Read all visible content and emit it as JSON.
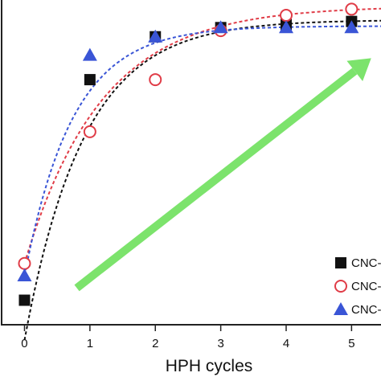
{
  "chart_data": {
    "type": "scatter",
    "xlabel": "HPH cycles",
    "ylabel": "",
    "xlim": [
      -0.35,
      5.45
    ],
    "ylim": [
      0,
      1.06
    ],
    "x_ticks": [
      0,
      1,
      2,
      3,
      4,
      5
    ],
    "grid": false,
    "legend_position": "bottom-right",
    "series": [
      {
        "name": "CNC-",
        "marker": "square",
        "color": "#111111",
        "x": [
          0,
          1,
          2,
          3,
          4,
          5
        ],
        "y": [
          0.08,
          0.8,
          0.94,
          0.97,
          0.98,
          0.99
        ]
      },
      {
        "name": "CNC-",
        "marker": "open-circle",
        "color": "#e03c47",
        "x": [
          0,
          1,
          2,
          3,
          4,
          5
        ],
        "y": [
          0.2,
          0.63,
          0.8,
          0.96,
          1.01,
          1.03
        ]
      },
      {
        "name": "CNC-",
        "marker": "triangle",
        "color": "#3a55d6",
        "x": [
          0,
          1,
          2,
          3,
          4,
          5
        ],
        "y": [
          0.16,
          0.88,
          0.94,
          0.97,
          0.97,
          0.97
        ]
      }
    ],
    "fit_curves": [
      {
        "series": 0,
        "style": "dashed",
        "color": "#111111",
        "plateau": 0.995,
        "rate": 1.1
      },
      {
        "series": 1,
        "style": "dashed",
        "color": "#e03c47",
        "plateau": 1.04,
        "rate": 0.85,
        "y0": 0.2
      },
      {
        "series": 2,
        "style": "dashed",
        "color": "#3a55d6",
        "plateau": 0.975,
        "rate": 1.35,
        "y0": 0.16
      }
    ],
    "annotation_arrow": {
      "color": "#7ce36c",
      "from": [
        0.8,
        0.12
      ],
      "to": [
        5.3,
        0.87
      ]
    }
  }
}
